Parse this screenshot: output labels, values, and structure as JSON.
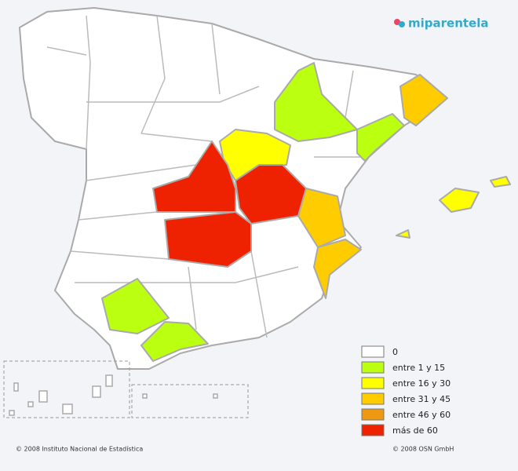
{
  "brand": "miparentela",
  "legend": [
    {
      "label": "0",
      "color": "#ffffff"
    },
    {
      "label": "entre 1 y 15",
      "color": "#bbff11"
    },
    {
      "label": "entre 16 y 30",
      "color": "#ffff00"
    },
    {
      "label": "entre 31 y 45",
      "color": "#ffcc00"
    },
    {
      "label": "entre 46 y 60",
      "color": "#ee9911"
    },
    {
      "label": "más de 60",
      "color": "#ee2200"
    }
  ],
  "footer": {
    "left": "© 2008 Instituto Nacional de Estadística",
    "right": "© 2008 OSN GmbH"
  }
}
